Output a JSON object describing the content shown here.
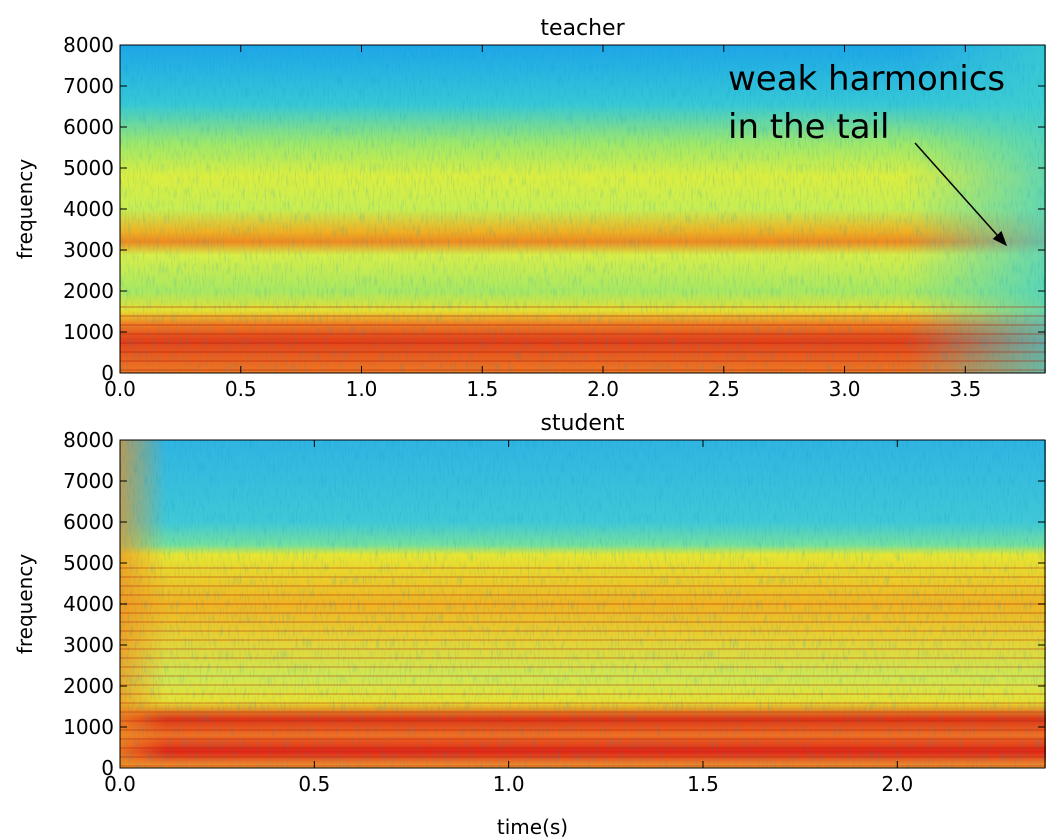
{
  "chart_data": [
    {
      "type": "spectrogram",
      "title": "teacher",
      "y_label": "frequency",
      "annotation": [
        "weak harmonics",
        "in the tail"
      ],
      "xlim": [
        0,
        3.83
      ],
      "xticks": [
        {
          "value": 0,
          "label": "0.0"
        },
        0.5,
        {
          "value": 1,
          "label": "1.0"
        },
        1.5,
        {
          "value": 2,
          "label": "2.0"
        },
        2.5,
        {
          "value": 3,
          "label": "3.0"
        },
        3.5
      ],
      "ylim": [
        0,
        8000
      ],
      "yticks": [
        0,
        1000,
        2000,
        3000,
        4000,
        5000,
        6000,
        7000,
        8000
      ]
    },
    {
      "type": "spectrogram",
      "title": "student",
      "y_label": "frequency",
      "x_label": "time(s)",
      "xlim": [
        0,
        2.38
      ],
      "xticks": [
        {
          "value": 0,
          "label": "0.0"
        },
        0.5,
        {
          "value": 1,
          "label": "1.0"
        },
        1.5,
        {
          "value": 2,
          "label": "2.0"
        }
      ],
      "ylim": [
        0,
        8000
      ],
      "yticks": [
        0,
        1000,
        2000,
        3000,
        4000,
        5000,
        6000,
        7000,
        8000
      ]
    }
  ]
}
